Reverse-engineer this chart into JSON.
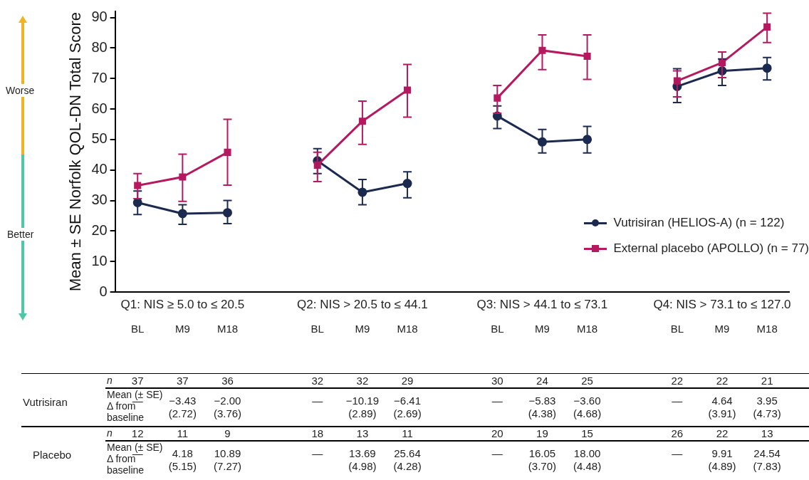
{
  "chart_data": {
    "type": "line",
    "ylabel": "Mean ± SE Norfolk QOL-DN Total Score",
    "categories": [
      "BL",
      "M9",
      "M18",
      null,
      "BL",
      "M9",
      "M18",
      null,
      "BL",
      "M9",
      "M18",
      null,
      "BL",
      "M9",
      "M18"
    ],
    "ylim": [
      0,
      92
    ],
    "yticks": [
      0,
      10,
      20,
      30,
      40,
      50,
      60,
      70,
      80,
      90
    ],
    "grid": false,
    "legend": "bottom right",
    "series": [
      {
        "name": "Vutrisiran (HELIOS-A) (n = 122)",
        "color": "#1b2a4e",
        "marker": "circle",
        "values": [
          29.3,
          25.7,
          26.0,
          null,
          43.0,
          32.7,
          35.6,
          null,
          57.7,
          49.2,
          50.0,
          null,
          67.4,
          72.5,
          73.4
        ],
        "errors": [
          [
            25.4,
            33.1
          ],
          [
            22.2,
            28.6
          ],
          [
            22.4,
            30.0
          ],
          null,
          [
            38.8,
            47.0
          ],
          [
            28.6,
            36.9
          ],
          [
            30.9,
            39.4
          ],
          null,
          [
            53.6,
            61.0
          ],
          [
            45.6,
            53.3
          ],
          [
            45.6,
            54.3
          ],
          null,
          [
            62.1,
            73.2
          ],
          [
            67.7,
            76.4
          ],
          [
            69.5,
            76.9
          ]
        ]
      },
      {
        "name": "External placebo (APOLLO) (n = 77)",
        "color": "#b5195f",
        "marker": "square",
        "values": [
          34.9,
          37.7,
          45.8,
          null,
          41.6,
          56.0,
          66.2,
          null,
          63.6,
          79.2,
          77.3,
          null,
          69.2,
          75.2,
          86.9
        ],
        "errors": [
          [
            30.6,
            38.8
          ],
          [
            29.7,
            45.2
          ],
          [
            35.0,
            56.6
          ],
          null,
          [
            36.2,
            45.8
          ],
          [
            48.4,
            62.6
          ],
          [
            57.3,
            74.6
          ],
          null,
          [
            58.6,
            67.7
          ],
          [
            72.9,
            84.3
          ],
          [
            69.7,
            84.3
          ],
          null,
          [
            64.0,
            72.5
          ],
          [
            70.3,
            78.7
          ],
          [
            81.8,
            91.4
          ]
        ]
      }
    ],
    "annotations": [
      "Q1: NIS ≥ 5.0 to ≤ 20.5",
      "Q2: NIS > 20.5 to ≤ 44.1",
      "Q3: NIS > 44.1 to ≤ 73.1",
      "Q4: NIS > 73.1 to ≤ 127.0",
      "Worse",
      "Better",
      "Vutrisiran",
      "Placebo",
      "n",
      "Mean (± SE)\nΔ from\nbaseline",
      "n",
      "Mean (± SE)\nΔ from\nbaseline",
      "37",
      "37",
      "36",
      "32",
      "32",
      "29",
      "30",
      "24",
      "25",
      "22",
      "22",
      "21",
      "—",
      "−3.43\n(2.72)",
      "−2.00\n(3.76)",
      "—",
      "−10.19\n(2.89)",
      "−6.41\n(2.69)",
      "—",
      "−5.83\n(4.38)",
      "−3.60\n(4.68)",
      "—",
      "4.64\n(3.91)",
      "3.95\n(4.73)",
      "12",
      "11",
      "9",
      "18",
      "13",
      "11",
      "20",
      "19",
      "15",
      "26",
      "22",
      "13",
      "—",
      "4.18\n(5.15)",
      "10.89\n(7.27)",
      "—",
      "13.69\n(4.98)",
      "25.64\n(4.28)",
      "—",
      "16.05\n(3.70)",
      "18.00\n(4.48)",
      "—",
      "9.91\n(4.89)",
      "24.54\n(7.83)"
    ]
  }
}
